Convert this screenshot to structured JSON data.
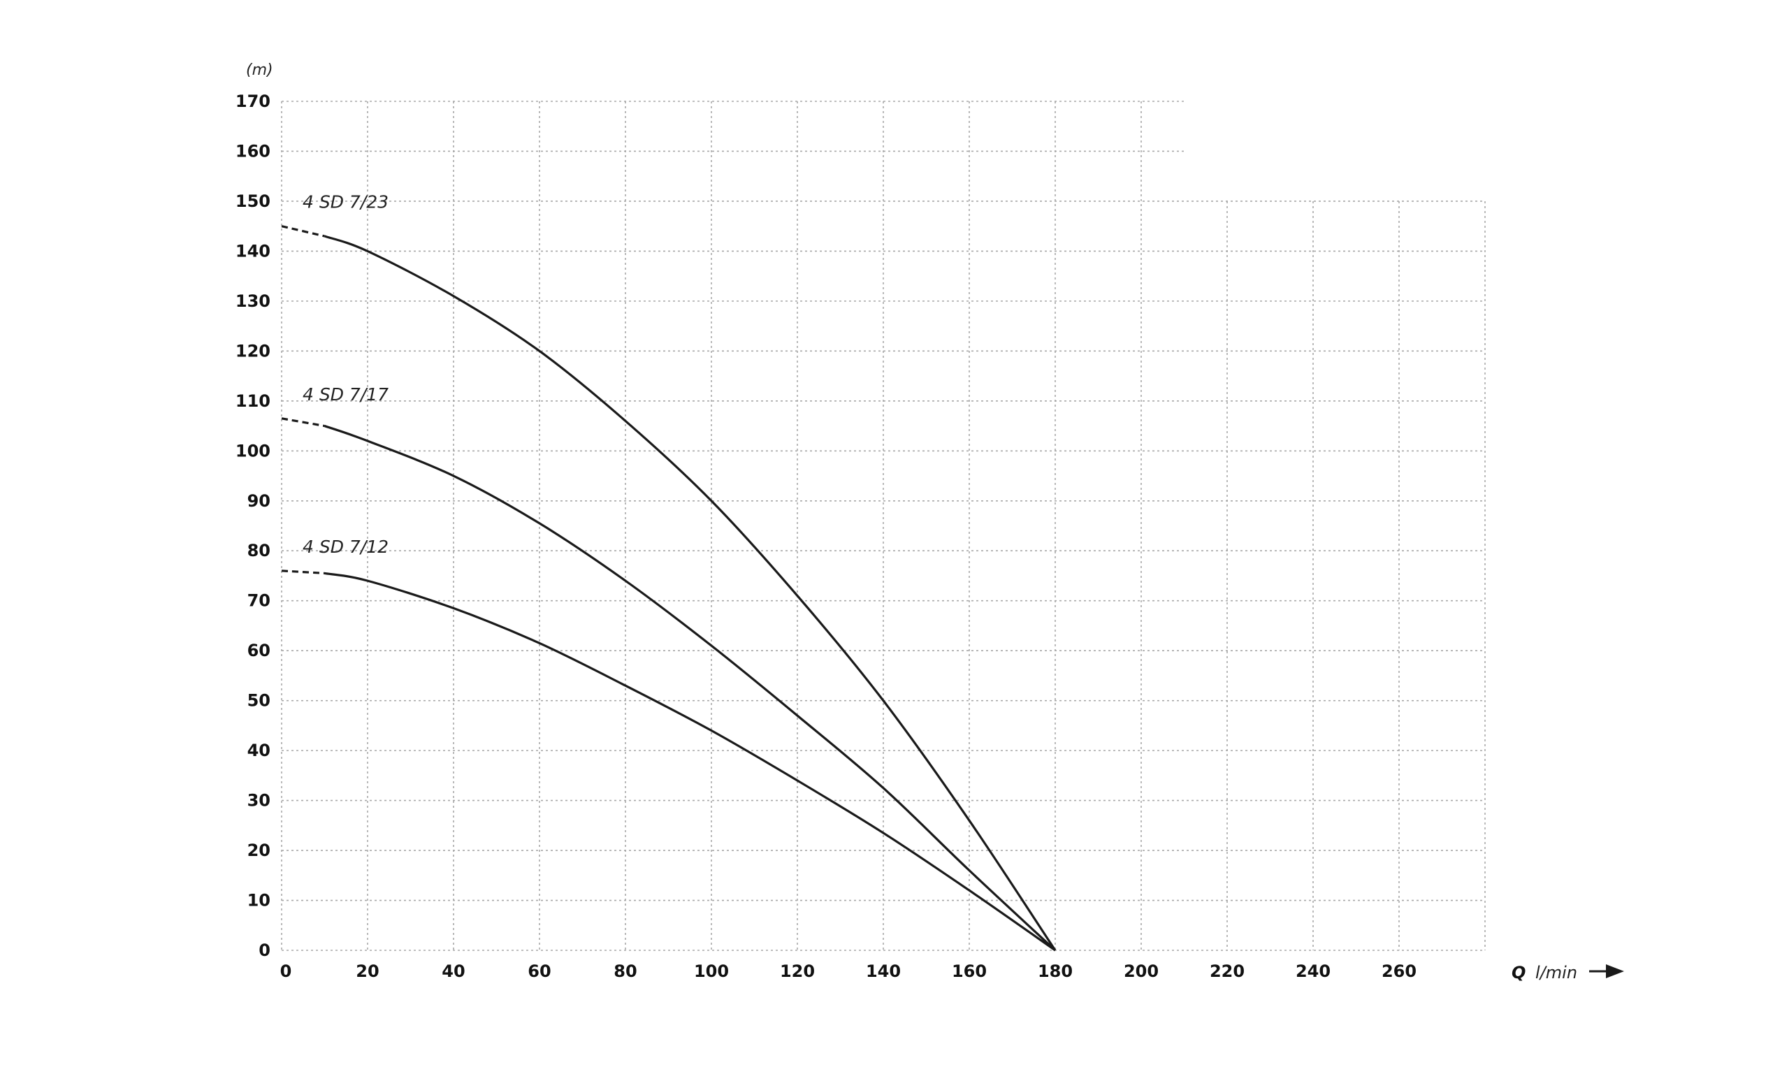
{
  "chart_data": {
    "type": "line",
    "ylabel": "(m)",
    "xlabel_symbol": "Q",
    "xlabel_unit": "l/min",
    "xlim": [
      0,
      280
    ],
    "ylim": [
      0,
      170
    ],
    "x_ticks": [
      0,
      20,
      40,
      60,
      80,
      100,
      120,
      140,
      160,
      180,
      200,
      220,
      240,
      260
    ],
    "y_ticks": [
      0,
      10,
      20,
      30,
      40,
      50,
      60,
      70,
      80,
      90,
      100,
      110,
      120,
      130,
      140,
      150,
      160,
      170
    ],
    "grid": true,
    "grid_style": "dotted",
    "series": [
      {
        "name": "4 SD 7/23",
        "x": [
          0,
          10,
          20,
          40,
          60,
          80,
          100,
          120,
          140,
          160,
          180
        ],
        "y": [
          145,
          143,
          140,
          131,
          120,
          106,
          90,
          71,
          50,
          26,
          0
        ],
        "dashed_until_x": 10
      },
      {
        "name": "4 SD 7/17",
        "x": [
          0,
          10,
          20,
          40,
          60,
          80,
          100,
          120,
          140,
          160,
          180
        ],
        "y": [
          106.5,
          105,
          102,
          95,
          85.5,
          74,
          61,
          47,
          32.5,
          16,
          0
        ],
        "dashed_until_x": 10
      },
      {
        "name": "4 SD 7/12",
        "x": [
          0,
          10,
          20,
          40,
          60,
          80,
          100,
          120,
          140,
          160,
          180
        ],
        "y": [
          76,
          75.5,
          74,
          68.5,
          61.5,
          53,
          44,
          34,
          23.5,
          12,
          0
        ],
        "dashed_until_x": 10
      }
    ],
    "line_color": "#1a1a1a",
    "grid_color": "#a8a8a8"
  }
}
